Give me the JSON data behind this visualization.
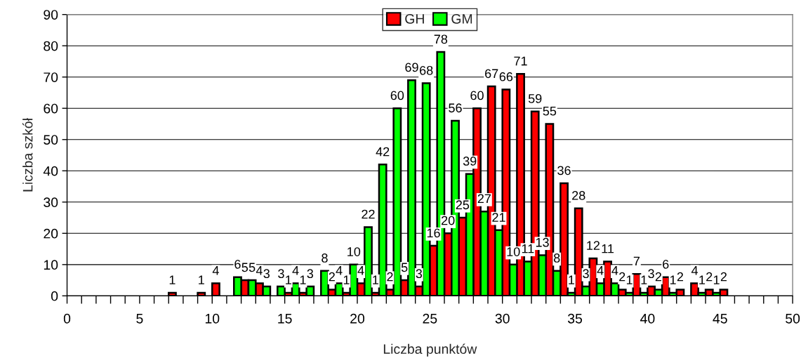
{
  "chart_data": {
    "type": "bar",
    "xlabel": "Liczba punktów",
    "ylabel": "Liczba szkół",
    "series": [
      {
        "name": "GH",
        "color": "#ff0000",
        "x": [
          7.25,
          9.25,
          10.25,
          12.25,
          13.25,
          15.25,
          16.25,
          18.25,
          19.25,
          20.25,
          21.25,
          22.25,
          23.25,
          24.25,
          25.25,
          26.25,
          27.25,
          28.25,
          29.25,
          30.25,
          31.25,
          32.25,
          33.25,
          34.25,
          35.25,
          36.25,
          37.25,
          38.25,
          39.25,
          40.25,
          41.25,
          42.25,
          43.25,
          44.25,
          45.25
        ],
        "values": [
          1,
          1,
          4,
          5,
          4,
          1,
          1,
          2,
          1,
          4,
          1,
          2,
          5,
          3,
          16,
          20,
          25,
          60,
          67,
          66,
          71,
          59,
          55,
          36,
          28,
          12,
          11,
          2,
          7,
          3,
          6,
          2,
          4,
          2,
          2
        ]
      },
      {
        "name": "GM",
        "color": "#00ff00",
        "x": [
          11.75,
          12.75,
          13.75,
          14.75,
          15.75,
          16.75,
          17.75,
          18.75,
          19.75,
          20.75,
          21.75,
          22.75,
          23.75,
          24.75,
          25.75,
          26.75,
          27.75,
          28.75,
          29.75,
          30.75,
          31.75,
          32.75,
          33.75,
          34.75,
          35.75,
          36.75,
          37.75,
          38.75,
          39.75,
          40.75,
          41.75,
          43.75,
          44.75
        ],
        "values": [
          6,
          5,
          3,
          3,
          4,
          3,
          8,
          4,
          10,
          22,
          42,
          60,
          69,
          68,
          78,
          56,
          39,
          27,
          21,
          10,
          11,
          13,
          8,
          1,
          3,
          4,
          4,
          1,
          1,
          2,
          1,
          1,
          1
        ]
      }
    ],
    "xlim": [
      0,
      50
    ],
    "xticks": [
      0,
      {
        "value": 1,
        "label": null
      },
      {
        "value": 2,
        "label": null
      },
      {
        "value": 3,
        "label": null
      },
      {
        "value": 4,
        "label": null
      },
      5,
      {
        "value": 6,
        "label": null
      },
      {
        "value": 7,
        "label": null
      },
      {
        "value": 8,
        "label": null
      },
      {
        "value": 9,
        "label": null
      },
      10,
      {
        "value": 11,
        "label": null
      },
      {
        "value": 12,
        "label": null
      },
      {
        "value": 13,
        "label": null
      },
      {
        "value": 14,
        "label": null
      },
      15,
      {
        "value": 16,
        "label": null
      },
      {
        "value": 17,
        "label": null
      },
      {
        "value": 18,
        "label": null
      },
      {
        "value": 19,
        "label": null
      },
      20,
      {
        "value": 21,
        "label": null
      },
      {
        "value": 22,
        "label": null
      },
      {
        "value": 23,
        "label": null
      },
      {
        "value": 24,
        "label": null
      },
      25,
      {
        "value": 26,
        "label": null
      },
      {
        "value": 27,
        "label": null
      },
      {
        "value": 28,
        "label": null
      },
      {
        "value": 29,
        "label": null
      },
      30,
      {
        "value": 31,
        "label": null
      },
      {
        "value": 32,
        "label": null
      },
      {
        "value": 33,
        "label": null
      },
      {
        "value": 34,
        "label": null
      },
      35,
      {
        "value": 36,
        "label": null
      },
      {
        "value": 37,
        "label": null
      },
      {
        "value": 38,
        "label": null
      },
      {
        "value": 39,
        "label": null
      },
      40,
      {
        "value": 41,
        "label": null
      },
      {
        "value": 42,
        "label": null
      },
      {
        "value": 43,
        "label": null
      },
      {
        "value": 44,
        "label": null
      },
      45,
      {
        "value": 46,
        "label": null
      },
      {
        "value": 47,
        "label": null
      },
      {
        "value": 48,
        "label": null
      },
      {
        "value": 49,
        "label": null
      },
      50
    ],
    "ylim": [
      0,
      90
    ],
    "yticks": [
      0,
      10,
      20,
      30,
      40,
      50,
      60,
      70,
      80,
      90
    ],
    "grid": "y",
    "legend": "top",
    "data_labels": true
  }
}
